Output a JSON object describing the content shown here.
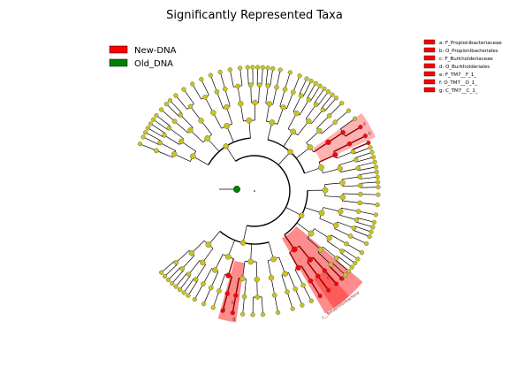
{
  "title": "Significantly Represented Taxa",
  "colors": {
    "new_dna": "#ff0000",
    "old_dna": "#008000",
    "node": "#c8c41e",
    "highlight": "#ff0000"
  },
  "groups": [
    {
      "key": "new",
      "label": "New-DNA"
    },
    {
      "key": "old",
      "label": "Old_DNA"
    }
  ],
  "taxa": [
    {
      "letter": "a",
      "label": "a: F_Propionibacteriaceae"
    },
    {
      "letter": "b",
      "label": "b: O_Propionibacteriales"
    },
    {
      "letter": "c",
      "label": "c: F_Burkholderiaceae"
    },
    {
      "letter": "d",
      "label": "d: O_Burkholderiales"
    },
    {
      "letter": "e",
      "label": "e: F_TM7__F_1_"
    },
    {
      "letter": "f",
      "label": "f: O_TM7__O_1_"
    },
    {
      "letter": "g",
      "label": "g: C_TM7__C_1_"
    }
  ],
  "clade_name": "c__Betaproteobacteria"
}
